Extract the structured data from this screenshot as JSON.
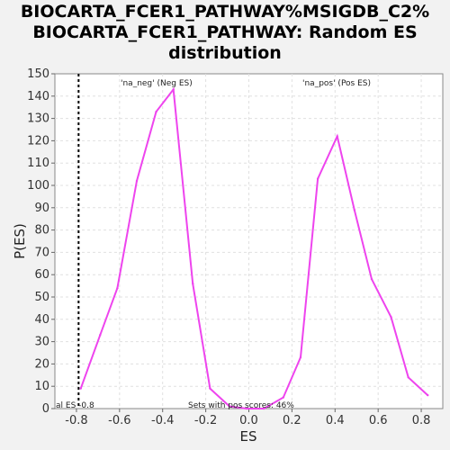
{
  "chart_data": {
    "type": "line",
    "title_lines": [
      "BIOCARTA_FCER1_PATHWAY%MSIGDB_C2%",
      "BIOCARTA_FCER1_PATHWAY: Random ES",
      "distribution"
    ],
    "xlabel": "ES",
    "ylabel": "P(ES)",
    "xlim": [
      -0.9,
      0.9
    ],
    "ylim": [
      0,
      150
    ],
    "xticks": [
      "-0.8",
      "-0.6",
      "-0.4",
      "-0.2",
      "0.0",
      "0.2",
      "0.4",
      "0.6",
      "0.8"
    ],
    "yticks": [
      "0",
      "10",
      "20",
      "30",
      "40",
      "50",
      "60",
      "70",
      "80",
      "90",
      "100",
      "110",
      "120",
      "130",
      "140",
      "150"
    ],
    "grid": true,
    "series": [
      {
        "color": "#ee44ee",
        "x": [
          -0.78,
          -0.69,
          -0.61,
          -0.52,
          -0.43,
          -0.35,
          -0.26,
          -0.18,
          -0.09,
          -0.01,
          0.07,
          0.16,
          0.24,
          0.32,
          0.41,
          0.49,
          0.57,
          0.66,
          0.74,
          0.83
        ],
        "y": [
          9,
          33,
          54,
          102,
          133,
          143,
          56,
          9,
          1,
          0,
          0,
          5,
          23,
          103,
          122,
          89,
          58,
          41,
          14,
          6
        ]
      }
    ],
    "annotations": {
      "neg_label": "'na_neg' (Neg ES)",
      "neg_color": "#0000cc",
      "pos_label": "'na_pos' (Pos ES)",
      "pos_color": "#cc0000",
      "actual_es_label": "al ES -0.8",
      "actual_es_value": -0.79,
      "pos_scores_label": "Sets with pos scores: 46%"
    }
  }
}
